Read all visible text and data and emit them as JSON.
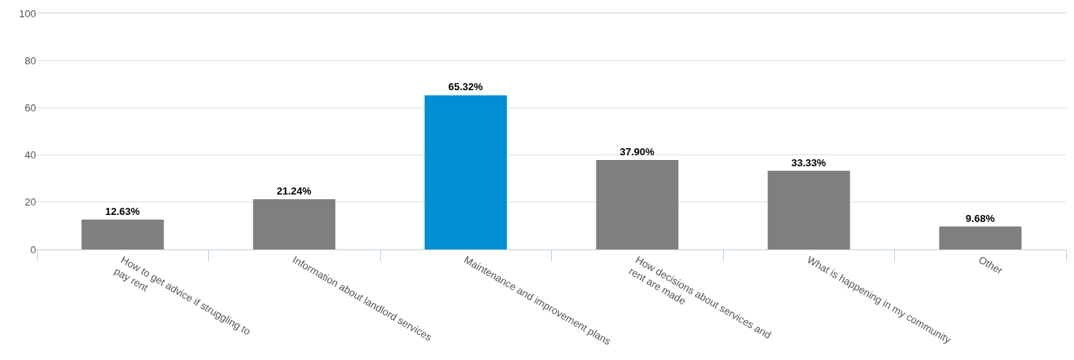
{
  "chart_data": {
    "type": "bar",
    "categories": [
      "How to get advice if struggling to pay rent",
      "Information about landlord services",
      "Maintenance and improvement plans",
      "How decisions about services and rent are made",
      "What is happening in my community",
      "Other"
    ],
    "values": [
      12.63,
      21.24,
      65.32,
      37.9,
      33.33,
      9.68
    ],
    "colors": [
      "#7f7f7f",
      "#7f7f7f",
      "#008fd5",
      "#7f7f7f",
      "#7f7f7f",
      "#7f7f7f"
    ],
    "value_labels": [
      "12.63%",
      "21.24%",
      "65.32%",
      "37.90%",
      "33.33%",
      "9.68%"
    ],
    "ylim": [
      0,
      100
    ],
    "yticks": [
      0,
      20,
      40,
      60,
      80,
      100
    ],
    "grid": "y"
  }
}
